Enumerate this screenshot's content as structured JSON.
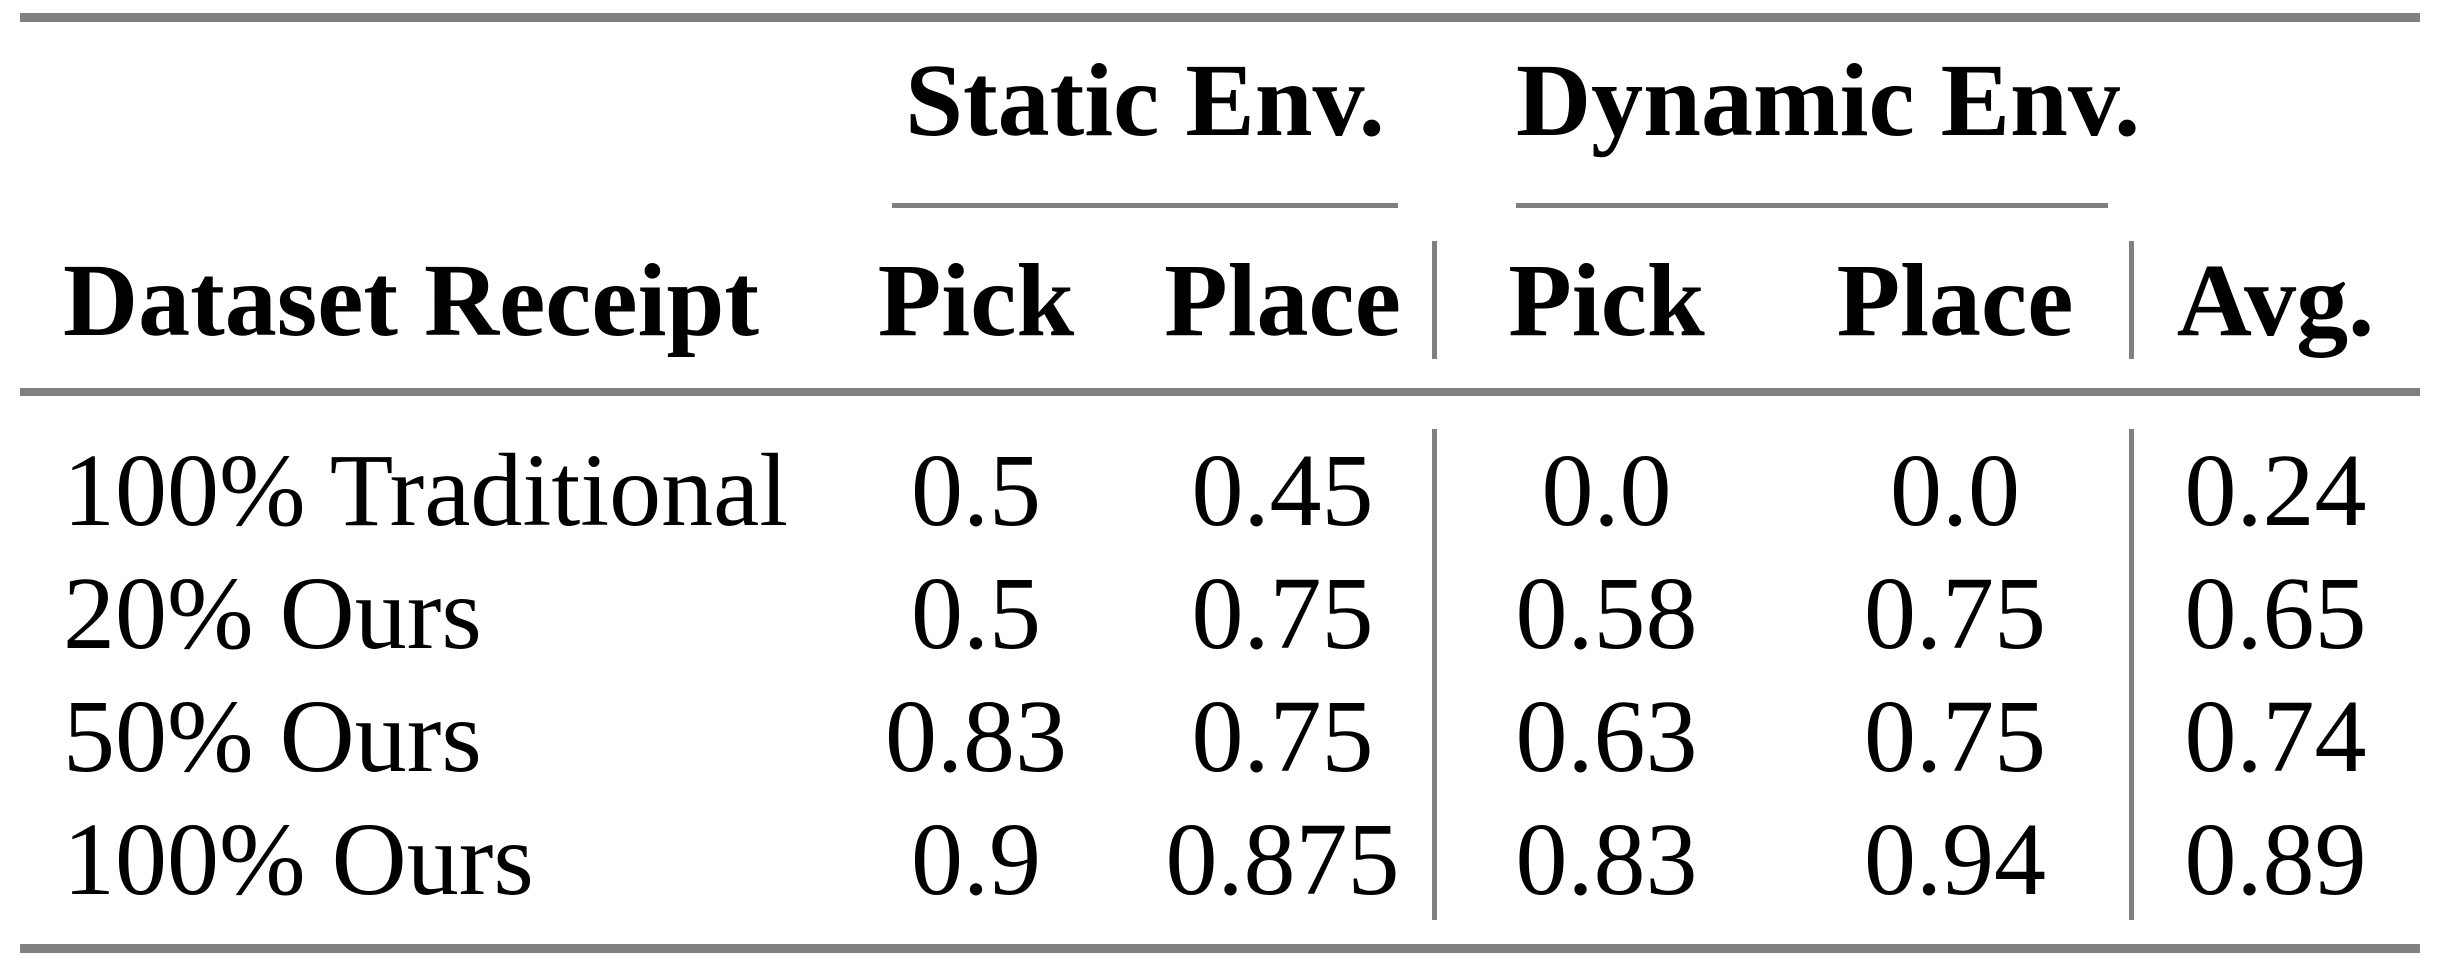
{
  "table": {
    "col_groups": [
      {
        "label": "Static Env."
      },
      {
        "label": "Dynamic Env."
      }
    ],
    "headers": {
      "dataset": "Dataset Receipt",
      "static_pick": "Pick",
      "static_place": "Place",
      "dynamic_pick": "Pick",
      "dynamic_place": "Place",
      "avg": "Avg."
    },
    "rows": [
      {
        "label": "100% Traditional",
        "static_pick": "0.5",
        "static_place": "0.45",
        "dynamic_pick": "0.0",
        "dynamic_place": "0.0",
        "avg": "0.24"
      },
      {
        "label": "20% Ours",
        "static_pick": "0.5",
        "static_place": "0.75",
        "dynamic_pick": "0.58",
        "dynamic_place": "0.75",
        "avg": "0.65"
      },
      {
        "label": "50% Ours",
        "static_pick": "0.83",
        "static_place": "0.75",
        "dynamic_pick": "0.63",
        "dynamic_place": "0.75",
        "avg": "0.74"
      },
      {
        "label": "100% Ours",
        "static_pick": "0.9",
        "static_place": "0.875",
        "dynamic_pick": "0.83",
        "dynamic_place": "0.94",
        "avg": "0.89"
      }
    ],
    "colors": {
      "rule": "#808080",
      "text": "#000000",
      "background": "#ffffff"
    }
  }
}
